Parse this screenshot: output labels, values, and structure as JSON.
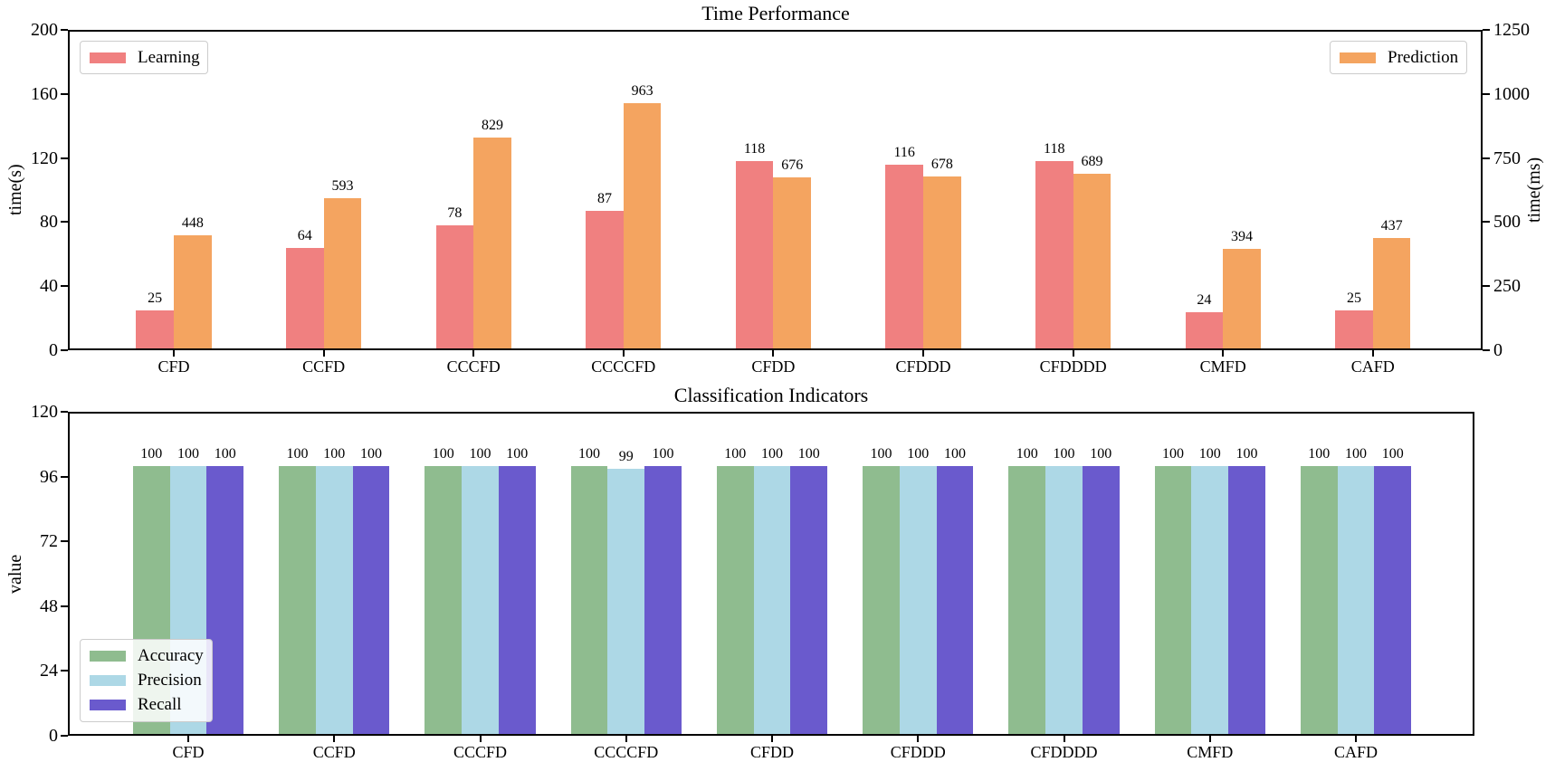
{
  "chart_data": [
    {
      "type": "bar",
      "title": "Time Performance",
      "categories": [
        "CFD",
        "CCFD",
        "CCCFD",
        "CCCCFD",
        "CFDD",
        "CFDDD",
        "CFDDDD",
        "CMFD",
        "CAFD"
      ],
      "left_axis": {
        "label": "time(s)",
        "ticks": [
          0,
          40,
          80,
          120,
          160,
          200
        ],
        "range": [
          0,
          200
        ]
      },
      "right_axis": {
        "label": "time(ms)",
        "ticks": [
          0,
          250,
          500,
          750,
          1000,
          1250
        ],
        "range": [
          0,
          1250
        ]
      },
      "series": [
        {
          "name": "Learning",
          "axis": "left",
          "color": "#F08080",
          "values": [
            25,
            64,
            78,
            87,
            118,
            116,
            118,
            24,
            25
          ]
        },
        {
          "name": "Prediction",
          "axis": "right",
          "color": "#F4A460",
          "values": [
            448,
            593,
            829,
            963,
            676,
            678,
            689,
            394,
            437
          ]
        }
      ],
      "bar_value_labels_shown": true,
      "legend_positions": [
        "upper-left",
        "upper-right"
      ],
      "grid": false
    },
    {
      "type": "bar",
      "title": "Classification Indicators",
      "categories": [
        "CFD",
        "CCFD",
        "CCCFD",
        "CCCCFD",
        "CFDD",
        "CFDDD",
        "CFDDDD",
        "CMFD",
        "CAFD"
      ],
      "left_axis": {
        "label": "value",
        "ticks": [
          0,
          24,
          48,
          72,
          96,
          120
        ],
        "range": [
          0,
          120
        ]
      },
      "series": [
        {
          "name": "Accuracy",
          "axis": "left",
          "color": "#8FBC8F",
          "values": [
            100,
            100,
            100,
            100,
            100,
            100,
            100,
            100,
            100
          ]
        },
        {
          "name": "Precision",
          "axis": "left",
          "color": "#ADD8E6",
          "values": [
            100,
            100,
            100,
            99,
            100,
            100,
            100,
            100,
            100
          ]
        },
        {
          "name": "Recall",
          "axis": "left",
          "color": "#6A5ACD",
          "values": [
            100,
            100,
            100,
            100,
            100,
            100,
            100,
            100,
            100
          ]
        }
      ],
      "bar_value_labels_shown": true,
      "legend_positions": [
        "lower-left"
      ],
      "grid": false
    }
  ]
}
